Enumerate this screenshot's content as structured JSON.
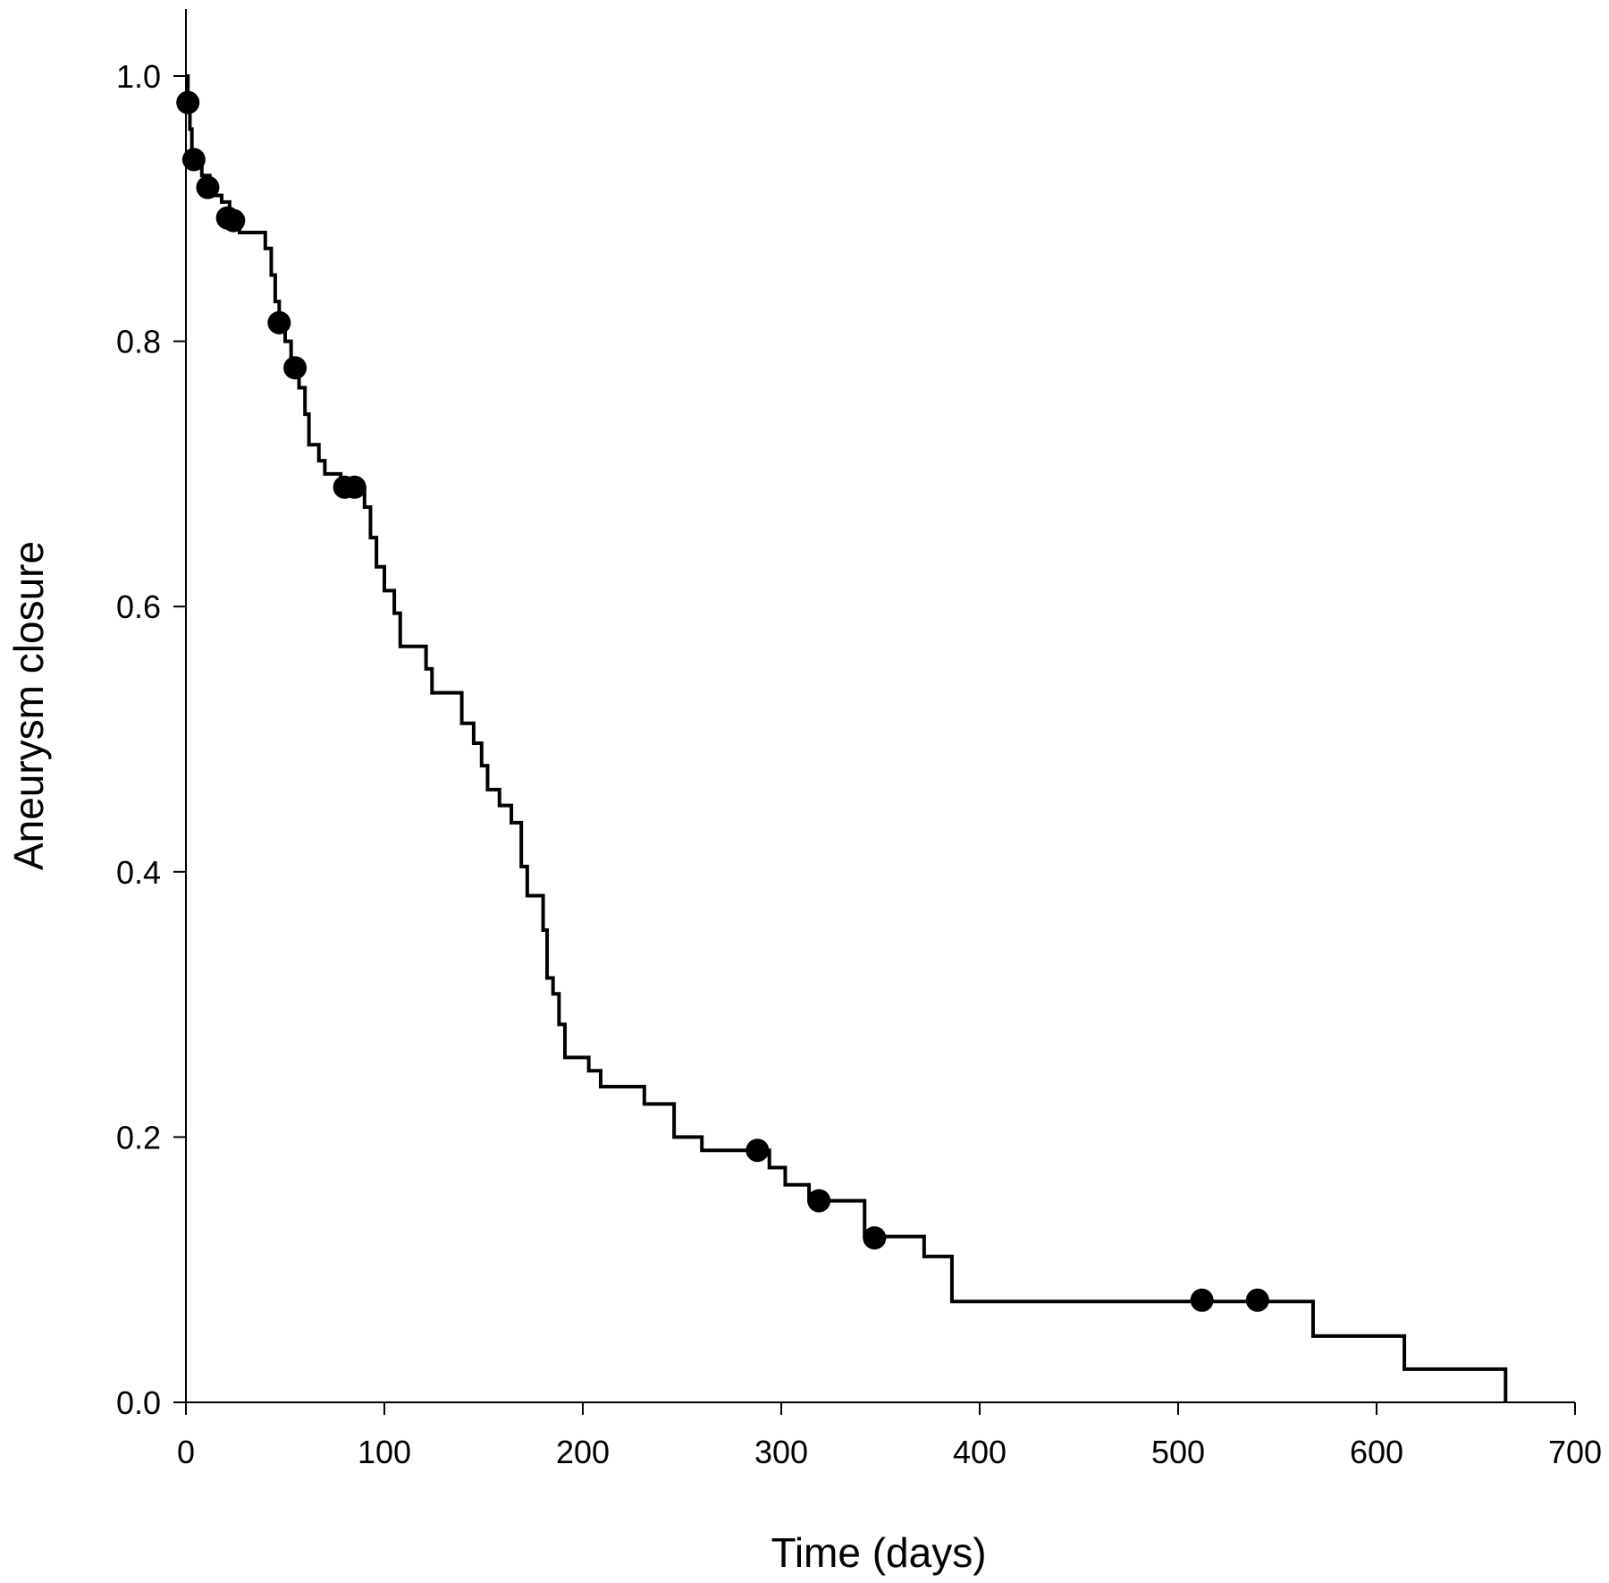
{
  "chart_data": {
    "type": "line",
    "style": "step",
    "title": "",
    "xlabel": "Time (days)",
    "ylabel": "Aneurysm closure",
    "xlim": [
      0,
      700
    ],
    "ylim": [
      0,
      1.0
    ],
    "xticks": [
      0,
      100,
      200,
      300,
      400,
      500,
      600,
      700
    ],
    "yticks": [
      0.0,
      0.2,
      0.4,
      0.6,
      0.8,
      1.0
    ],
    "xtick_labels": [
      "0",
      "100",
      "200",
      "300",
      "400",
      "500",
      "600",
      "700"
    ],
    "ytick_labels": [
      "0.0",
      "0.2",
      "0.4",
      "0.6",
      "0.8",
      "1.0"
    ],
    "grid": false,
    "series": [
      {
        "curve": [
          [
            0,
            1.0
          ],
          [
            1,
            0.98
          ],
          [
            2,
            0.96
          ],
          [
            3,
            0.94
          ],
          [
            8,
            0.925
          ],
          [
            12,
            0.91
          ],
          [
            18,
            0.905
          ],
          [
            22,
            0.895
          ],
          [
            27,
            0.882
          ],
          [
            40,
            0.87
          ],
          [
            43,
            0.85
          ],
          [
            45,
            0.83
          ],
          [
            47,
            0.815
          ],
          [
            50,
            0.8
          ],
          [
            53,
            0.78
          ],
          [
            57,
            0.765
          ],
          [
            60,
            0.745
          ],
          [
            62,
            0.722
          ],
          [
            67,
            0.71
          ],
          [
            70,
            0.7
          ],
          [
            78,
            0.69
          ],
          [
            90,
            0.675
          ],
          [
            93,
            0.652
          ],
          [
            96,
            0.63
          ],
          [
            100,
            0.612
          ],
          [
            105,
            0.595
          ],
          [
            108,
            0.57
          ],
          [
            121,
            0.553
          ],
          [
            124,
            0.535
          ],
          [
            139,
            0.512
          ],
          [
            145,
            0.497
          ],
          [
            149,
            0.48
          ],
          [
            152,
            0.462
          ],
          [
            158,
            0.45
          ],
          [
            164,
            0.437
          ],
          [
            169,
            0.404
          ],
          [
            172,
            0.382
          ],
          [
            180,
            0.356
          ],
          [
            182,
            0.32
          ],
          [
            185,
            0.308
          ],
          [
            188,
            0.285
          ],
          [
            191,
            0.26
          ],
          [
            203,
            0.25
          ],
          [
            209,
            0.238
          ],
          [
            231,
            0.225
          ],
          [
            246,
            0.2
          ],
          [
            260,
            0.19
          ],
          [
            294,
            0.177
          ],
          [
            302,
            0.164
          ],
          [
            314,
            0.152
          ],
          [
            342,
            0.125
          ],
          [
            372,
            0.11
          ],
          [
            386,
            0.076
          ],
          [
            568,
            0.05
          ],
          [
            614,
            0.025
          ],
          [
            665,
            0.0
          ]
        ],
        "censored": [
          [
            1,
            0.98
          ],
          [
            4,
            0.937
          ],
          [
            11,
            0.916
          ],
          [
            21,
            0.893
          ],
          [
            24,
            0.891
          ],
          [
            47,
            0.814
          ],
          [
            55,
            0.78
          ],
          [
            80,
            0.69
          ],
          [
            85,
            0.69
          ],
          [
            288,
            0.19
          ],
          [
            319,
            0.152
          ],
          [
            347,
            0.124
          ],
          [
            512,
            0.077
          ],
          [
            540,
            0.077
          ]
        ]
      }
    ]
  }
}
